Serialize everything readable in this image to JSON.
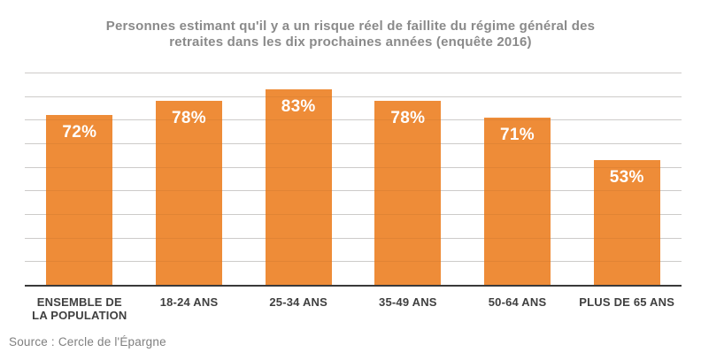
{
  "title_lines": [
    "Personnes estimant qu'il y a un risque réel de faillite du régime général des",
    "retraites dans les dix prochaines années (enquête 2016)"
  ],
  "source": "Source : Cercle de l'Épargne",
  "chart_data": {
    "type": "bar",
    "title": "Personnes estimant qu'il y a un risque réel de faillite du régime général des retraites dans les dix prochaines années (enquête 2016)",
    "categories": [
      "ENSEMBLE DE LA POPULATION",
      "18-24 ANS",
      "25-34 ANS",
      "35-49 ANS",
      "50-64 ANS",
      "PLUS DE 65 ANS"
    ],
    "values": [
      72,
      78,
      83,
      78,
      71,
      53
    ],
    "value_labels": [
      "72%",
      "78%",
      "83%",
      "78%",
      "71%",
      "53%"
    ],
    "xlabel": "",
    "ylabel": "",
    "ylim": [
      0,
      90
    ],
    "gridline_step": 10,
    "grid": true,
    "legend": false,
    "y_tick_labels_visible": false,
    "colors": {
      "bar": "#EE8C38",
      "gridline": "#D9D9D9",
      "axis_line": "#3A3A3A",
      "value_label": "#FFFFFF",
      "category_label": "#3F3F3F",
      "title": "#8A8A8A",
      "source": "#7F7F7F"
    }
  }
}
